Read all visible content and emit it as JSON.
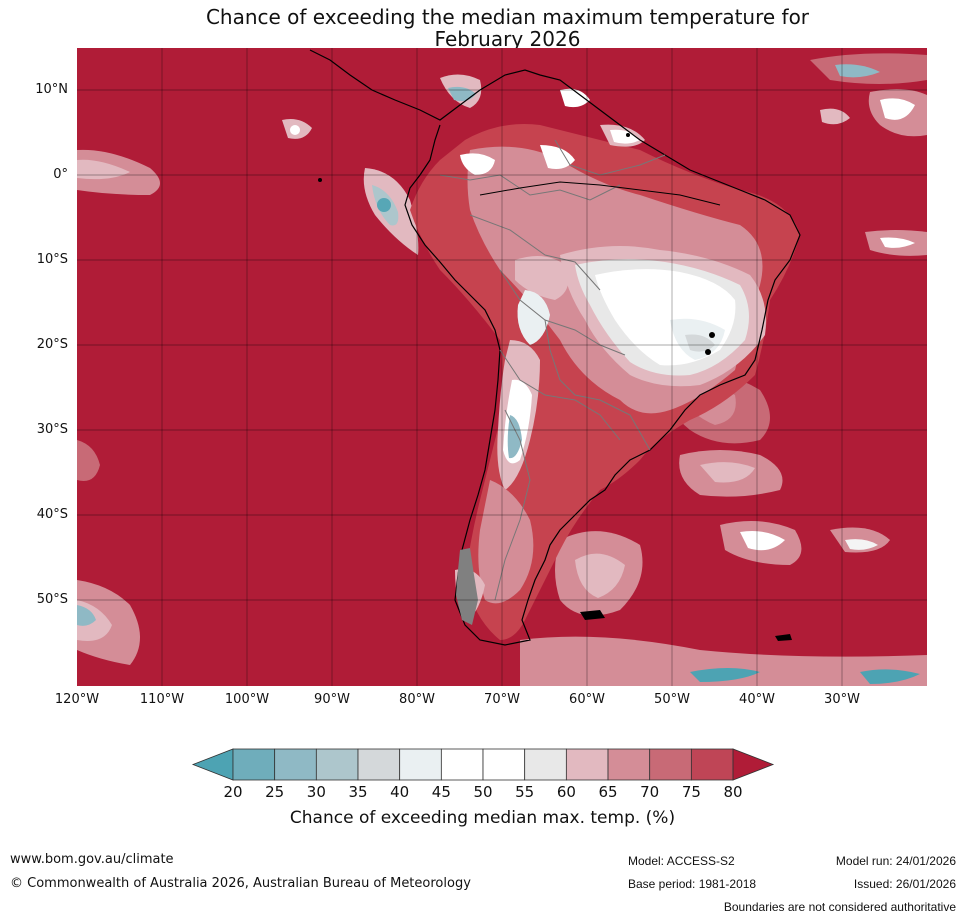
{
  "title": {
    "line1": "Chance of exceeding the median maximum temperature for",
    "line2": "February 2026"
  },
  "map": {
    "latitude_labels": [
      "10°N",
      "0°",
      "10°S",
      "20°S",
      "30°S",
      "40°S",
      "50°S"
    ],
    "longitude_labels": [
      "120°W",
      "110°W",
      "100°W",
      "90°W",
      "80°W",
      "70°W",
      "60°W",
      "50°W",
      "40°W",
      "30°W"
    ],
    "colors": {
      "ocean_dominant": "#b01c37",
      "land_high": "#c6434f",
      "near_median": "#f4f4f4",
      "below_median": "#57a7b6",
      "coastline": "#000000",
      "borders": "#777777"
    }
  },
  "colorbar": {
    "ticks": [
      "20",
      "25",
      "30",
      "35",
      "40",
      "45",
      "50",
      "55",
      "60",
      "65",
      "70",
      "75",
      "80"
    ],
    "colors": [
      "#4da3b3",
      "#6fadbb",
      "#8fb9c5",
      "#adc6cc",
      "#d4d8da",
      "#eaf0f2",
      "#ffffff",
      "#ffffff",
      "#e8e8e8",
      "#e2b9c0",
      "#d48d97",
      "#c86a76",
      "#bf4556",
      "#b01c37"
    ],
    "label": "Chance of exceeding median max. temp. (%)"
  },
  "footer": {
    "website": "www.bom.gov.au/climate",
    "copyright": "© Commonwealth of Australia 2026, Australian Bureau of Meteorology",
    "model": "Model: ACCESS-S2",
    "base_period": "Base period: 1981-2018",
    "model_run": "Model run: 24/01/2026",
    "issued": "Issued: 26/01/2026",
    "disclaimer": "Boundaries are not considered authoritative"
  }
}
